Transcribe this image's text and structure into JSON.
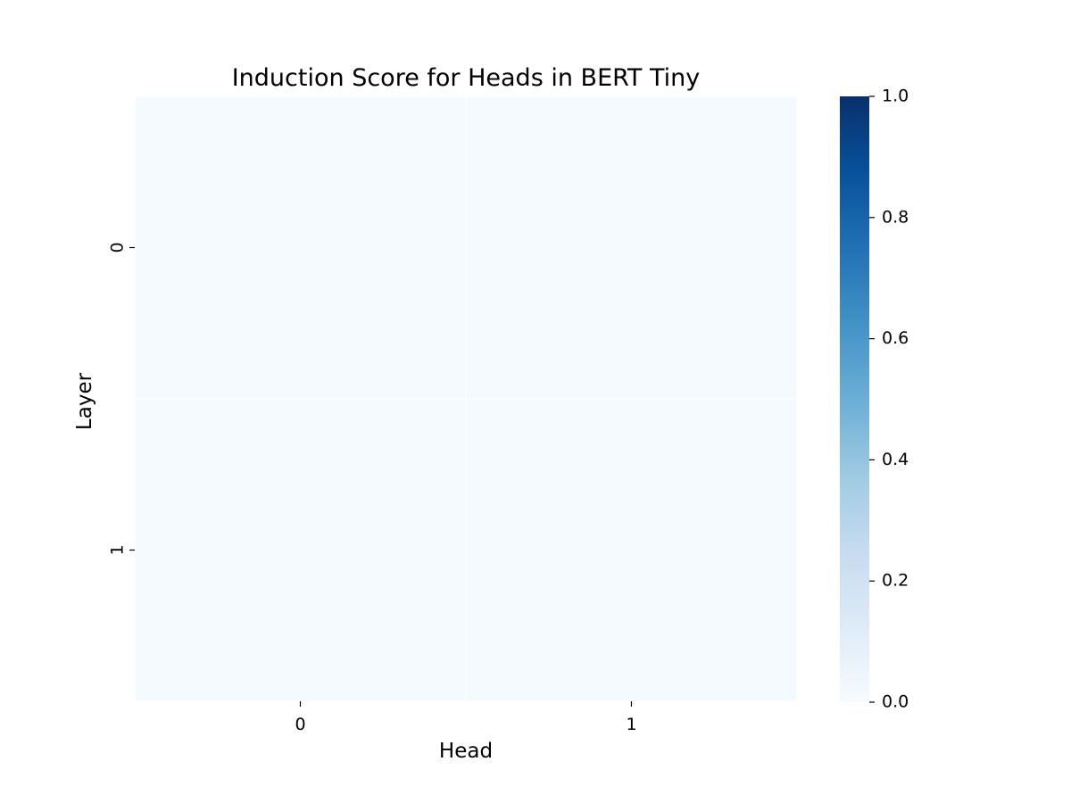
{
  "chart_data": {
    "type": "heatmap",
    "title": "Induction Score for Heads in BERT Tiny",
    "xlabel": "Head",
    "ylabel": "Layer",
    "x_categories": [
      "0",
      "1"
    ],
    "y_categories": [
      "0",
      "1"
    ],
    "values": [
      [
        0.01,
        0.01
      ],
      [
        0.01,
        0.01
      ]
    ],
    "colormap": "Blues",
    "colorbar": {
      "vmin": 0.0,
      "vmax": 1.0,
      "ticks": [
        "0.0",
        "0.2",
        "0.4",
        "0.6",
        "0.8",
        "1.0"
      ]
    },
    "colors": {
      "low": "#f7fbff",
      "high": "#08306b",
      "cell_border": "#ffffff"
    }
  }
}
